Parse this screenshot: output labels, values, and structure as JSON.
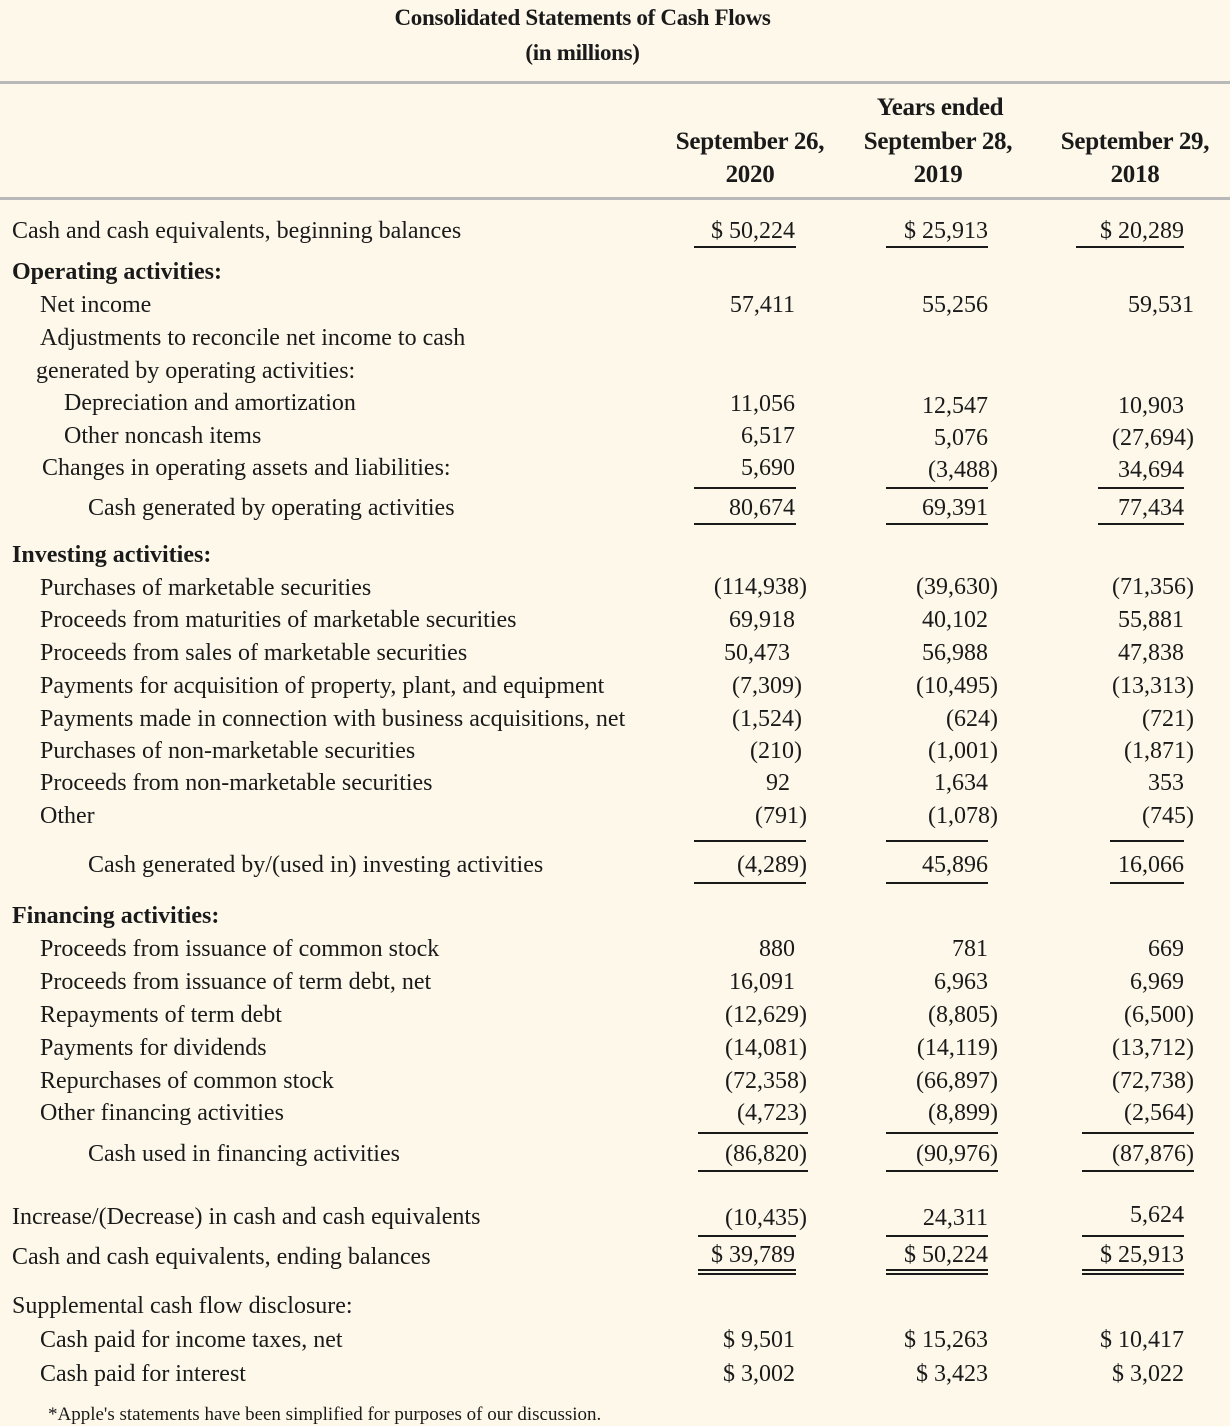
{
  "title": "Consolidated Statements of Cash Flows",
  "subtitle": "(in millions)",
  "header": {
    "group": "Years ended",
    "columns": [
      {
        "line1": "September 26,",
        "line2": "2020"
      },
      {
        "line1": "September 28,",
        "line2": "2019"
      },
      {
        "line1": "September 29,",
        "line2": "2018"
      }
    ]
  },
  "rows": [
    {
      "label": "Cash and cash equivalents, beginning balances",
      "values": [
        "$  50,224",
        "$  25,913",
        "$   20,289"
      ]
    },
    {
      "label": "Operating activities:"
    },
    {
      "label": "Net income",
      "values": [
        "57,411",
        "55,256",
        "59,531"
      ]
    },
    {
      "label": "Adjustments to reconcile net income to cash"
    },
    {
      "label": "generated by operating activities:"
    },
    {
      "label": "Depreciation and amortization",
      "values": [
        "11,056",
        "12,547",
        "10,903"
      ]
    },
    {
      "label": "Other noncash items",
      "values": [
        "6,517",
        "5,076",
        "(27,694)"
      ]
    },
    {
      "label": "Changes in operating assets and liabilities:",
      "values": [
        "5,690",
        "(3,488)",
        "34,694"
      ]
    },
    {
      "label": "Cash generated by operating activities",
      "values": [
        "80,674",
        "69,391",
        "77,434"
      ]
    },
    {
      "label": "Investing activities:"
    },
    {
      "label": "Purchases of marketable securities",
      "values": [
        "(114,938)",
        "(39,630)",
        "(71,356)"
      ]
    },
    {
      "label": "Proceeds from maturities of marketable securities",
      "values": [
        "69,918",
        "40,102",
        "55,881"
      ]
    },
    {
      "label": "Proceeds from sales of marketable securities",
      "values": [
        "50,473",
        "56,988",
        "47,838"
      ]
    },
    {
      "label": "Payments for acquisition of property, plant, and equipment",
      "values": [
        "(7,309)",
        "(10,495)",
        "(13,313)"
      ]
    },
    {
      "label": "Payments made in connection with business acquisitions, net",
      "values": [
        "(1,524)",
        "(624)",
        "(721)"
      ]
    },
    {
      "label": "Purchases of non-marketable securities",
      "values": [
        "(210)",
        "(1,001)",
        "(1,871)"
      ]
    },
    {
      "label": "Proceeds from non-marketable securities",
      "values": [
        "92",
        "1,634",
        "353"
      ]
    },
    {
      "label": "Other",
      "values": [
        "(791)",
        "(1,078)",
        "(745)"
      ]
    },
    {
      "label": "Cash generated by/(used in) investing activities",
      "values": [
        "(4,289)",
        "45,896",
        "16,066"
      ]
    },
    {
      "label": "Financing activities:"
    },
    {
      "label": "Proceeds from issuance of common stock",
      "values": [
        "880",
        "781",
        "669"
      ]
    },
    {
      "label": "Proceeds from issuance of term debt, net",
      "values": [
        "16,091",
        "6,963",
        "6,969"
      ]
    },
    {
      "label": "Repayments of term debt",
      "values": [
        "(12,629)",
        "(8,805)",
        "(6,500)"
      ]
    },
    {
      "label": "Payments for dividends",
      "values": [
        "(14,081)",
        "(14,119)",
        "(13,712)"
      ]
    },
    {
      "label": "Repurchases of common stock",
      "values": [
        "(72,358)",
        "(66,897)",
        "(72,738)"
      ]
    },
    {
      "label": "Other financing activities",
      "values": [
        "(4,723)",
        "(8,899)",
        "(2,564)"
      ]
    },
    {
      "label": "Cash used in financing activities",
      "values": [
        "(86,820)",
        "(90,976)",
        "(87,876)"
      ]
    },
    {
      "label": "Increase/(Decrease) in cash and cash equivalents",
      "values": [
        "(10,435)",
        "24,311",
        "5,624"
      ]
    },
    {
      "label": "Cash and cash equivalents, ending balances",
      "values": [
        "$ 39,789",
        "$ 50,224",
        "$  25,913"
      ]
    },
    {
      "label": "Supplemental cash flow disclosure:"
    },
    {
      "label": "Cash paid for income taxes, net",
      "values": [
        "$    9,501",
        "$ 15,263",
        "$  10,417"
      ]
    },
    {
      "label": "Cash paid for interest",
      "values": [
        "$    3,002",
        "$   3,423",
        "$      3,022"
      ]
    }
  ],
  "footnote": "*Apple's statements have been simplified for purposes of our discussion."
}
